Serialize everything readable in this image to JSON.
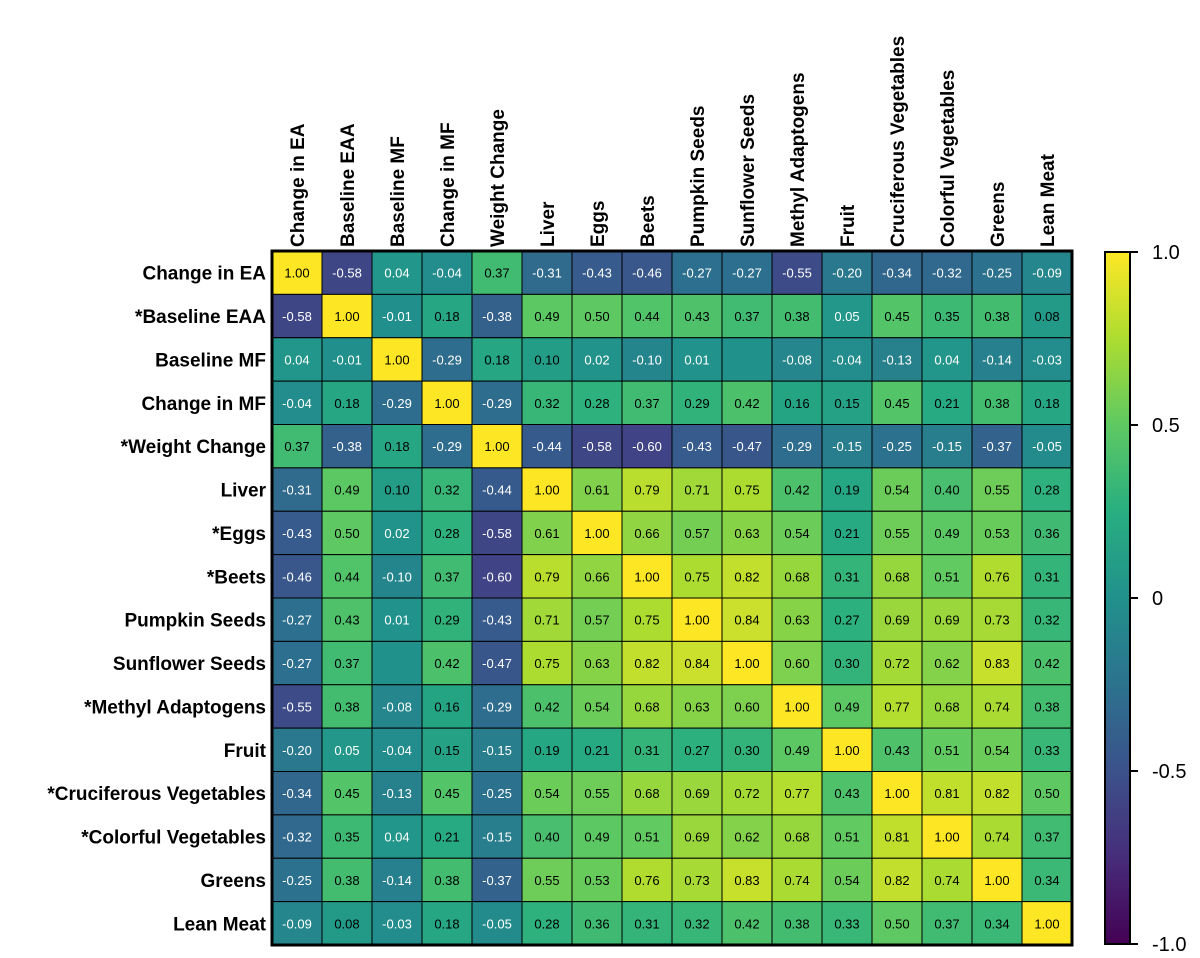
{
  "chart_data": {
    "type": "heatmap",
    "title": "",
    "labels": [
      "Change in EA",
      "Baseline EAA",
      "Baseline MF",
      "Change in MF",
      "Weight Change",
      "Liver",
      "Eggs",
      "Beets",
      "Pumpkin Seeds",
      "Sunflower Seeds",
      "Methyl Adaptogens",
      "Fruit",
      "Cruciferous Vegetables",
      "Colorful Vegetables",
      "Greens",
      "Lean Meat"
    ],
    "row_labels": [
      "Change in EA",
      "*Baseline EAA",
      "Baseline MF",
      "Change in MF",
      "*Weight Change",
      "Liver",
      "*Eggs",
      "*Beets",
      "Pumpkin Seeds",
      "Sunflower Seeds",
      "*Methyl Adaptogens",
      "Fruit",
      "*Cruciferous Vegetables",
      "*Colorful Vegetables",
      "Greens",
      "Lean Meat"
    ],
    "values": [
      [
        1.0,
        -0.58,
        0.04,
        -0.04,
        0.37,
        -0.31,
        -0.43,
        -0.46,
        -0.27,
        -0.27,
        -0.55,
        -0.2,
        -0.34,
        -0.32,
        -0.25,
        -0.09
      ],
      [
        -0.58,
        1.0,
        -0.01,
        0.18,
        -0.38,
        0.49,
        0.5,
        0.44,
        0.43,
        0.37,
        0.38,
        0.05,
        0.45,
        0.35,
        0.38,
        0.08
      ],
      [
        0.04,
        -0.01,
        1.0,
        -0.29,
        0.18,
        0.1,
        0.02,
        -0.1,
        0.01,
        null,
        -0.08,
        -0.04,
        -0.13,
        0.04,
        -0.14,
        -0.03
      ],
      [
        -0.04,
        0.18,
        -0.29,
        1.0,
        -0.29,
        0.32,
        0.28,
        0.37,
        0.29,
        0.42,
        0.16,
        0.15,
        0.45,
        0.21,
        0.38,
        0.18
      ],
      [
        0.37,
        -0.38,
        0.18,
        -0.29,
        1.0,
        -0.44,
        -0.58,
        -0.6,
        -0.43,
        -0.47,
        -0.29,
        -0.15,
        -0.25,
        -0.15,
        -0.37,
        -0.05
      ],
      [
        -0.31,
        0.49,
        0.1,
        0.32,
        -0.44,
        1.0,
        0.61,
        0.79,
        0.71,
        0.75,
        0.42,
        0.19,
        0.54,
        0.4,
        0.55,
        0.28
      ],
      [
        -0.43,
        0.5,
        0.02,
        0.28,
        -0.58,
        0.61,
        1.0,
        0.66,
        0.57,
        0.63,
        0.54,
        0.21,
        0.55,
        0.49,
        0.53,
        0.36
      ],
      [
        -0.46,
        0.44,
        -0.1,
        0.37,
        -0.6,
        0.79,
        0.66,
        1.0,
        0.75,
        0.82,
        0.68,
        0.31,
        0.68,
        0.51,
        0.76,
        0.31
      ],
      [
        -0.27,
        0.43,
        0.01,
        0.29,
        -0.43,
        0.71,
        0.57,
        0.75,
        1.0,
        0.84,
        0.63,
        0.27,
        0.69,
        0.69,
        0.73,
        0.32
      ],
      [
        -0.27,
        0.37,
        null,
        0.42,
        -0.47,
        0.75,
        0.63,
        0.82,
        0.84,
        1.0,
        0.6,
        0.3,
        0.72,
        0.62,
        0.83,
        0.42
      ],
      [
        -0.55,
        0.38,
        -0.08,
        0.16,
        -0.29,
        0.42,
        0.54,
        0.68,
        0.63,
        0.6,
        1.0,
        0.49,
        0.77,
        0.68,
        0.74,
        0.38
      ],
      [
        -0.2,
        0.05,
        -0.04,
        0.15,
        -0.15,
        0.19,
        0.21,
        0.31,
        0.27,
        0.3,
        0.49,
        1.0,
        0.43,
        0.51,
        0.54,
        0.33
      ],
      [
        -0.34,
        0.45,
        -0.13,
        0.45,
        -0.25,
        0.54,
        0.55,
        0.68,
        0.69,
        0.72,
        0.77,
        0.43,
        1.0,
        0.81,
        0.82,
        0.5
      ],
      [
        -0.32,
        0.35,
        0.04,
        0.21,
        -0.15,
        0.4,
        0.49,
        0.51,
        0.69,
        0.62,
        0.68,
        0.51,
        0.81,
        1.0,
        0.74,
        0.37
      ],
      [
        -0.25,
        0.38,
        -0.14,
        0.38,
        -0.37,
        0.55,
        0.53,
        0.76,
        0.73,
        0.83,
        0.74,
        0.54,
        0.82,
        0.74,
        1.0,
        0.34
      ],
      [
        -0.09,
        0.08,
        -0.03,
        0.18,
        -0.05,
        0.28,
        0.36,
        0.31,
        0.32,
        0.42,
        0.38,
        0.33,
        0.5,
        0.37,
        0.34,
        1.0
      ]
    ],
    "colorbar": {
      "range": [
        -1.0,
        1.0
      ],
      "ticks": [
        1.0,
        0.5,
        0,
        -0.5,
        -1.0
      ],
      "tick_labels": [
        "1.0",
        "0.5",
        "0",
        "-0.5",
        "-1.0"
      ],
      "colormap": "viridis"
    }
  }
}
